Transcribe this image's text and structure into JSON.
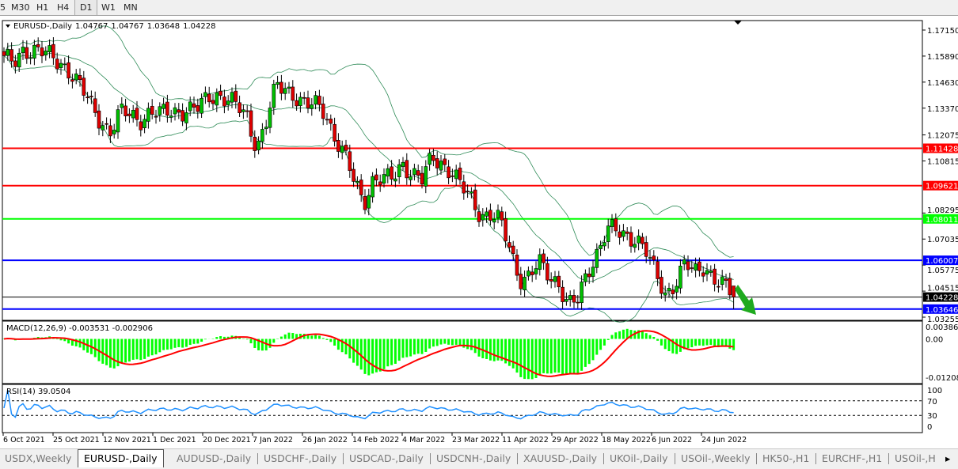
{
  "toolbar": {
    "timeframes": [
      "5",
      "M30",
      "H1",
      "H4",
      "D1",
      "W1",
      "MN"
    ],
    "active": "D1"
  },
  "chart_header": {
    "symbol": "EURUSD-,Daily",
    "open": "1.04767",
    "high": "1.04767",
    "low": "1.03648",
    "close": "1.04228"
  },
  "price_axis": [
    "1.17150",
    "1.15890",
    "1.14630",
    "1.13370",
    "1.12075",
    "1.10815",
    "1.08295",
    "1.07035",
    "1.05775",
    "1.04515",
    "1.03255"
  ],
  "levels": [
    {
      "price": "1.11428",
      "color": "#ff0000"
    },
    {
      "price": "1.09621",
      "color": "#ff0000"
    },
    {
      "price": "1.08011",
      "color": "#00ff00"
    },
    {
      "price": "1.06007",
      "color": "#0000ff"
    },
    {
      "price": "1.04228",
      "color": "#000000"
    },
    {
      "price": "1.03646",
      "color": "#0000ff"
    }
  ],
  "macd": {
    "label": "MACD(12,26,9) -0.003531 -0.002906",
    "axis": [
      "0.003865",
      "0.00",
      "-0.01208"
    ],
    "histogram_color": "#00ff00",
    "signal_color": "#ff0000"
  },
  "rsi": {
    "label": "RSI(14) 39.0504",
    "axis": [
      "100",
      "70",
      "30",
      "0"
    ],
    "line_color": "#1e90ff"
  },
  "dates": [
    "6 Oct 2021",
    "25 Oct 2021",
    "12 Nov 2021",
    "1 Dec 2021",
    "20 Dec 2021",
    "7 Jan 2022",
    "26 Jan 2022",
    "14 Feb 2022",
    "4 Mar 2022",
    "23 Mar 2022",
    "11 Apr 2022",
    "29 Apr 2022",
    "18 May 2022",
    "6 Jun 2022",
    "24 Jun 2022"
  ],
  "tabs": [
    "USDX,Weekly",
    "EURUSD-,Daily",
    "AUDUSD-,Daily",
    "USDCHF-,Daily",
    "USDCAD-,Daily",
    "USDCNH-,Daily",
    "XAUUSD-,Daily",
    "UKOil-,Daily",
    "USOil-,Weekly",
    "HK50-,H1",
    "EURCHF-,H1",
    "USOil-,H"
  ],
  "active_tab": "EURUSD-,Daily",
  "chart_data": {
    "type": "candlestick",
    "bull_color": "#00c000",
    "bear_color": "#e00000",
    "bands_color": "#2e8b57",
    "close_keypoints": [
      1.157,
      1.155,
      1.163,
      1.162,
      1.16,
      1.158,
      1.156,
      1.15,
      1.142,
      1.135,
      1.128,
      1.122,
      1.131,
      1.131,
      1.129,
      1.131,
      1.13,
      1.133,
      1.133,
      1.132,
      1.133,
      1.14,
      1.141,
      1.137,
      1.134,
      1.13,
      1.115,
      1.127,
      1.144,
      1.144,
      1.14,
      1.134,
      1.135,
      1.133,
      1.12,
      1.11,
      1.098,
      1.089,
      1.1,
      1.098,
      1.1,
      1.108,
      1.102,
      1.098,
      1.11,
      1.108,
      1.103,
      1.095,
      1.09,
      1.083,
      1.082,
      1.078,
      1.066,
      1.052,
      1.052,
      1.058,
      1.053,
      1.05,
      1.038,
      1.04,
      1.055,
      1.065,
      1.075,
      1.073,
      1.072,
      1.072,
      1.064,
      1.052,
      1.044,
      1.05,
      1.058,
      1.053,
      1.058,
      1.052,
      1.047,
      1.04228
    ],
    "price_range": [
      1.03255,
      1.1715
    ],
    "macd_range": [
      -0.01208,
      0.003865
    ],
    "rsi_range": [
      0,
      100
    ]
  }
}
